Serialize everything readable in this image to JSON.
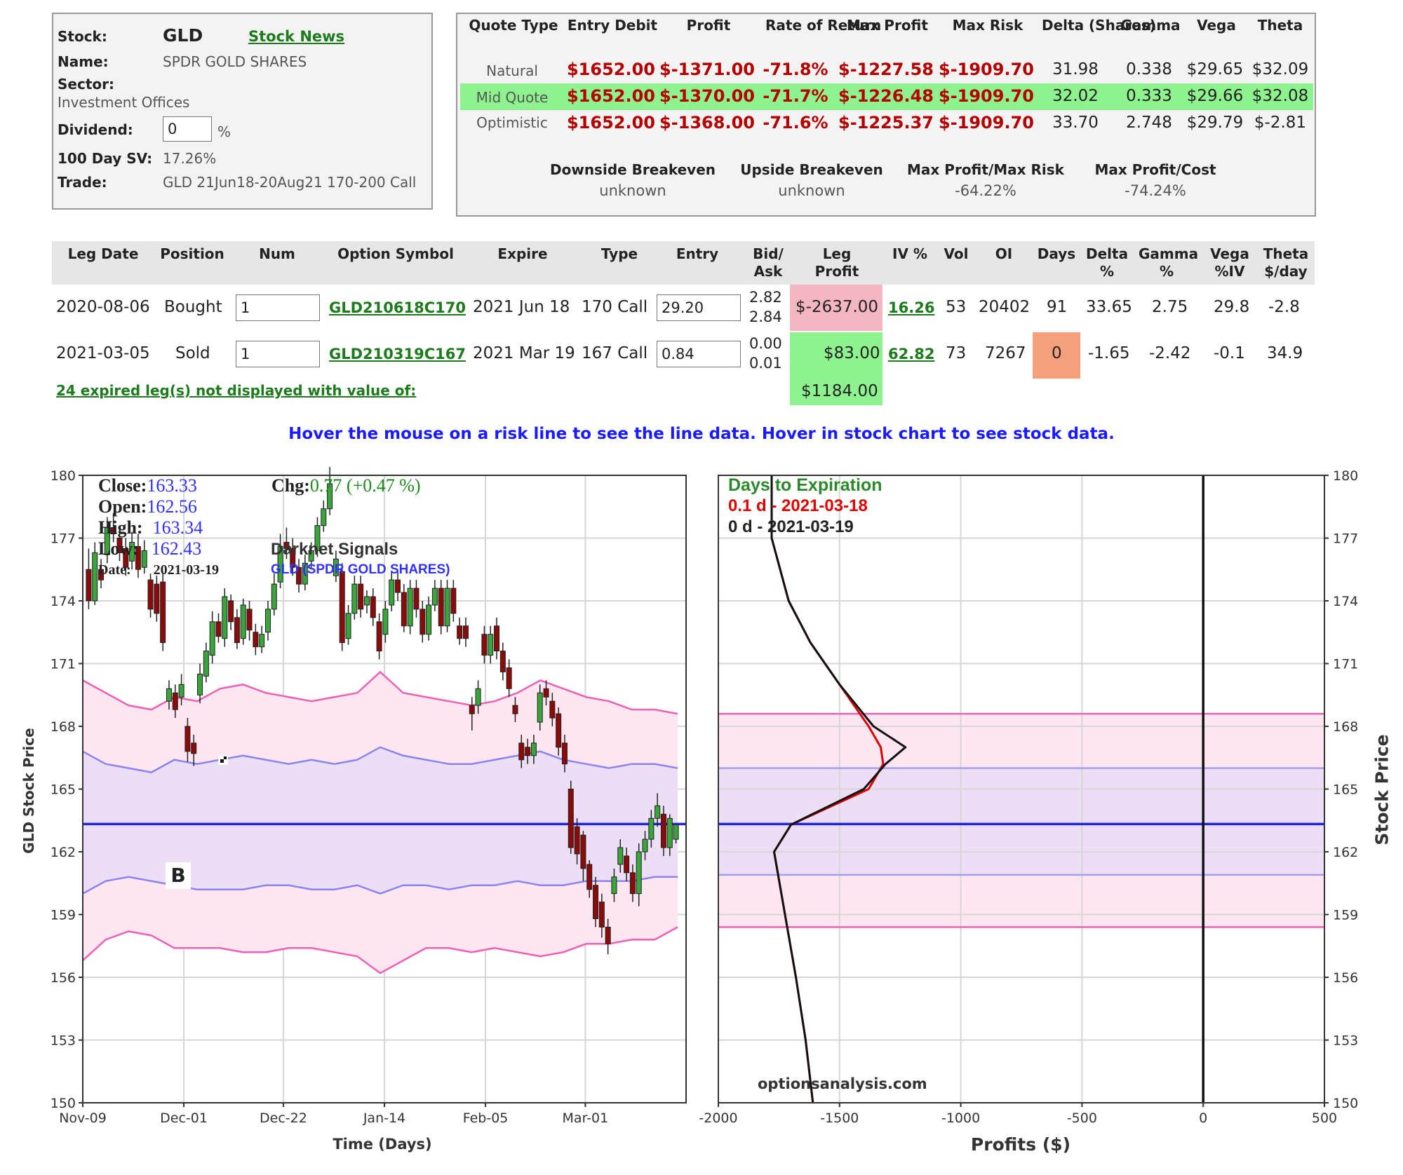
{
  "stock_box": {
    "stock_label": "Stock:",
    "stock_symbol": "GLD",
    "stock_news_link": "Stock News",
    "name_label": "Name:",
    "name_value": "SPDR GOLD SHARES",
    "sector_label": "Sector:",
    "sector_value": "Investment Offices",
    "dividend_label": "Dividend:",
    "dividend_value": "0",
    "dividend_unit": "%",
    "sv_label": "100 Day SV:",
    "sv_value": "17.26%",
    "trade_label": "Trade:",
    "trade_value": "GLD 21Jun18-20Aug21 170-200 Call"
  },
  "quote": {
    "headers": [
      "Quote Type",
      "Entry Debit",
      "Profit",
      "Rate of Return",
      "Max Profit",
      "Max Risk",
      "Delta (Shares)",
      "Gamma",
      "Vega",
      "Theta"
    ],
    "rows": [
      {
        "type": "Natural",
        "entry": "$1652.00",
        "profit": "$-1371.00",
        "ror": "-71.8%",
        "max_profit": "$-1227.58",
        "max_risk": "$-1909.70",
        "delta": "31.98",
        "gamma": "0.338",
        "vega": "$29.65",
        "theta": "$32.09"
      },
      {
        "type": "Mid Quote",
        "entry": "$1652.00",
        "profit": "$-1370.00",
        "ror": "-71.7%",
        "max_profit": "$-1226.48",
        "max_risk": "$-1909.70",
        "delta": "32.02",
        "gamma": "0.333",
        "vega": "$29.66",
        "theta": "$32.08"
      },
      {
        "type": "Optimistic",
        "entry": "$1652.00",
        "profit": "$-1368.00",
        "ror": "-71.6%",
        "max_profit": "$-1225.37",
        "max_risk": "$-1909.70",
        "delta": "33.70",
        "gamma": "2.748",
        "vega": "$29.79",
        "theta": "$-2.81"
      }
    ],
    "highlight_color": "#8ef28e",
    "summary": {
      "downside_label": "Downside Breakeven",
      "downside_value": "unknown",
      "upside_label": "Upside Breakeven",
      "upside_value": "unknown",
      "mpmr_label": "Max Profit/Max Risk",
      "mpmr_value": "-64.22%",
      "mpc_label": "Max Profit/Cost",
      "mpc_value": "-74.24%"
    }
  },
  "legs": {
    "headers": {
      "leg_date": "Leg Date",
      "position": "Position",
      "num": "Num",
      "symbol": "Option Symbol",
      "expire": "Expire",
      "type": "Type",
      "entry": "Entry",
      "bidask": "Bid/ Ask",
      "leg_profit": "Leg Profit",
      "iv": "IV %",
      "vol": "Vol",
      "oi": "OI",
      "days": "Days",
      "delta": "Delta %",
      "gamma": "Gamma %",
      "vega": "Vega %IV",
      "theta": "Theta $/day"
    },
    "rows": [
      {
        "date": "2020-08-06",
        "position": "Bought",
        "num": "1",
        "symbol": "GLD210618C170",
        "expire": "2021 Jun 18",
        "type": "170 Call",
        "entry": "29.20",
        "bid": "2.82",
        "ask": "2.84",
        "leg_profit": "$-2637.00",
        "iv": "16.26",
        "vol": "53",
        "oi": "20402",
        "days": "91",
        "delta": "33.65",
        "gamma": "2.75",
        "vega": "29.8",
        "theta": "-2.8"
      },
      {
        "date": "2021-03-05",
        "position": "Sold",
        "num": "1",
        "symbol": "GLD210319C167",
        "expire": "2021 Mar 19",
        "type": "167 Call",
        "entry": "0.84",
        "bid": "0.00",
        "ask": "0.01",
        "leg_profit": "$83.00",
        "iv": "62.82",
        "vol": "73",
        "oi": "7267",
        "days": "0",
        "delta": "-1.65",
        "gamma": "-2.42",
        "vega": "-0.1",
        "theta": "34.9"
      }
    ],
    "expired_link": "24 expired leg(s) not displayed with value of:",
    "expired_value": "$1184.00",
    "loss_color": "#f4b6c2",
    "gain_color": "#8ef28e",
    "days_alert_color": "#f4a07c"
  },
  "hover_hint": "Hover the mouse on a risk line to see the line data. Hover in stock chart to see stock data.",
  "stock_chart": {
    "ylabel": "GLD Stock Price",
    "xlabel": "Time (Days)",
    "y_ticks": [
      "180",
      "177",
      "174",
      "171",
      "168",
      "165",
      "162",
      "159",
      "156",
      "153",
      "150"
    ],
    "x_ticks": [
      "Nov-09",
      "Dec-01",
      "Dec-22",
      "Jan-14",
      "Feb-05",
      "Mar-01"
    ],
    "info": {
      "close_label": "Close:",
      "close": "163.33",
      "open_label": "Open:",
      "open": "162.56",
      "high_label": "High:",
      "high": "163.34",
      "low_label": "Low:",
      "low": "162.43",
      "date_label": "Date:",
      "date": "2021-03-19",
      "chg_label": "Chg:",
      "chg": "0.77",
      "chg_pct": "(+0.47 %)"
    },
    "signals_title": "Darknet Signals",
    "signals_sub": "GLD (SPDR GOLD SHARES)",
    "marker_b": "B"
  },
  "chart_data": [
    {
      "type": "candlestick",
      "ylim": [
        150,
        180
      ],
      "x_ticks": [
        "Nov-09",
        "Dec-01",
        "Dec-22",
        "Jan-14",
        "Feb-05",
        "Mar-01"
      ],
      "current_price": 163.33,
      "candles": [
        [
          175.5,
          174.0,
          176.5,
          173.6
        ],
        [
          174.0,
          176.3,
          176.8,
          173.8
        ],
        [
          175.5,
          175.0,
          176.0,
          174.6
        ],
        [
          176.2,
          177.5,
          178.0,
          175.8
        ],
        [
          177.5,
          177.2,
          178.2,
          176.8
        ],
        [
          177.0,
          176.3,
          177.6,
          175.9
        ],
        [
          176.5,
          175.6,
          177.0,
          175.2
        ],
        [
          175.9,
          176.8,
          177.3,
          175.5
        ],
        [
          176.6,
          175.5,
          177.2,
          175.1
        ],
        [
          175.6,
          176.4,
          176.9,
          175.3
        ],
        [
          175.0,
          173.6,
          175.3,
          173.2
        ],
        [
          174.8,
          173.4,
          175.2,
          173.0
        ],
        [
          174.9,
          172.0,
          175.4,
          171.6
        ],
        [
          169.2,
          169.8,
          170.2,
          168.8
        ],
        [
          169.6,
          168.8,
          170.0,
          168.4
        ],
        [
          169.4,
          170.0,
          170.5,
          169.0
        ],
        [
          168.0,
          166.8,
          168.4,
          166.3
        ],
        [
          167.2,
          166.7,
          167.6,
          166.1
        ],
        [
          169.5,
          170.5,
          171.0,
          169.1
        ],
        [
          170.4,
          171.6,
          172.0,
          170.1
        ],
        [
          171.4,
          173.0,
          173.5,
          171.0
        ],
        [
          173.0,
          172.3,
          173.4,
          172.0
        ],
        [
          172.2,
          174.2,
          174.6,
          171.8
        ],
        [
          174.0,
          173.0,
          174.3,
          172.6
        ],
        [
          173.2,
          172.0,
          173.6,
          171.7
        ],
        [
          172.2,
          173.8,
          174.1,
          171.9
        ],
        [
          173.6,
          172.6,
          174.0,
          172.1
        ],
        [
          172.5,
          171.8,
          172.9,
          171.4
        ],
        [
          171.8,
          172.4,
          172.8,
          171.5
        ],
        [
          172.5,
          173.6,
          174.0,
          172.1
        ],
        [
          173.6,
          174.8,
          175.3,
          173.3
        ],
        [
          174.9,
          176.6,
          177.2,
          174.6
        ],
        [
          176.8,
          176.5,
          177.5,
          176.0
        ],
        [
          176.5,
          175.6,
          177.0,
          175.2
        ],
        [
          175.6,
          174.8,
          176.0,
          174.4
        ],
        [
          174.8,
          175.8,
          176.2,
          174.5
        ],
        [
          175.9,
          176.4,
          176.8,
          175.5
        ],
        [
          176.4,
          177.6,
          178.0,
          176.1
        ],
        [
          177.6,
          178.4,
          178.8,
          177.3
        ],
        [
          178.4,
          179.6,
          180.4,
          178.1
        ],
        [
          175.2,
          176.0,
          176.4,
          174.9
        ],
        [
          175.4,
          172.0,
          175.8,
          171.6
        ],
        [
          172.2,
          173.4,
          173.8,
          171.9
        ],
        [
          173.4,
          174.8,
          175.2,
          173.1
        ],
        [
          174.8,
          173.6,
          175.2,
          173.2
        ],
        [
          173.8,
          174.2,
          174.5,
          173.4
        ],
        [
          174.2,
          173.2,
          174.6,
          172.8
        ],
        [
          173.0,
          171.6,
          173.4,
          171.2
        ],
        [
          172.4,
          173.6,
          174.0,
          172.0
        ],
        [
          173.8,
          175.0,
          175.4,
          173.5
        ],
        [
          175.0,
          174.4,
          175.4,
          174.0
        ],
        [
          174.4,
          172.8,
          174.8,
          172.5
        ],
        [
          172.8,
          174.6,
          175.0,
          172.4
        ],
        [
          174.6,
          173.6,
          175.0,
          173.2
        ],
        [
          173.6,
          172.4,
          174.0,
          172.0
        ],
        [
          172.4,
          173.8,
          174.2,
          172.1
        ],
        [
          173.8,
          174.6,
          175.0,
          173.5
        ],
        [
          174.6,
          172.8,
          175.0,
          172.4
        ],
        [
          172.8,
          174.6,
          175.0,
          172.5
        ],
        [
          174.6,
          173.4,
          175.0,
          173.0
        ],
        [
          172.8,
          172.2,
          173.2,
          171.9
        ],
        [
          172.8,
          172.2,
          173.2,
          171.8
        ],
        [
          169.0,
          168.6,
          169.4,
          167.8
        ],
        [
          169.0,
          169.8,
          170.2,
          168.6
        ],
        [
          172.4,
          171.4,
          172.8,
          171.0
        ],
        [
          171.4,
          172.4,
          172.8,
          171.0
        ],
        [
          172.8,
          171.6,
          173.2,
          171.2
        ],
        [
          171.6,
          170.6,
          172.0,
          170.2
        ],
        [
          170.8,
          169.8,
          171.2,
          169.4
        ],
        [
          169.0,
          168.6,
          169.4,
          168.2
        ],
        [
          167.2,
          166.4,
          167.6,
          166.0
        ],
        [
          167.0,
          166.6,
          167.4,
          166.2
        ],
        [
          166.6,
          167.2,
          167.6,
          166.2
        ],
        [
          168.2,
          169.6,
          170.0,
          167.8
        ],
        [
          169.8,
          169.4,
          170.2,
          169.0
        ],
        [
          169.2,
          168.4,
          169.6,
          168.0
        ],
        [
          168.6,
          167.0,
          168.9,
          166.6
        ],
        [
          167.2,
          166.2,
          167.6,
          165.8
        ],
        [
          165.0,
          162.2,
          165.4,
          161.9
        ],
        [
          163.2,
          161.9,
          163.6,
          161.4
        ],
        [
          162.8,
          161.2,
          163.0,
          160.6
        ],
        [
          161.4,
          160.2,
          161.6,
          159.8
        ],
        [
          160.4,
          158.8,
          160.8,
          158.4
        ],
        [
          159.6,
          158.4,
          160.0,
          157.9
        ],
        [
          158.4,
          157.6,
          158.8,
          157.1
        ],
        [
          160.0,
          160.8,
          161.2,
          159.6
        ],
        [
          161.4,
          162.2,
          162.6,
          161.0
        ],
        [
          161.8,
          161.0,
          162.2,
          160.6
        ],
        [
          161.0,
          160.0,
          161.4,
          159.6
        ],
        [
          160.0,
          162.0,
          162.4,
          159.4
        ],
        [
          162.0,
          162.6,
          163.0,
          161.6
        ],
        [
          162.6,
          163.6,
          164.0,
          162.2
        ],
        [
          163.6,
          164.2,
          164.8,
          163.2
        ],
        [
          163.8,
          162.2,
          164.2,
          161.8
        ],
        [
          162.2,
          163.6,
          163.8,
          161.8
        ],
        [
          162.6,
          163.3,
          163.3,
          162.4
        ]
      ],
      "bands": {
        "upper_outer": [
          170.2,
          169.6,
          169.0,
          168.8,
          169.4,
          169.2,
          169.8,
          170.0,
          169.6,
          169.4,
          169.2,
          169.4,
          169.6,
          170.6,
          169.6,
          169.4,
          169.2,
          169.0,
          169.2,
          169.6,
          170.2,
          169.8,
          169.4,
          169.2,
          168.8,
          168.8,
          168.6
        ],
        "upper_inner": [
          166.8,
          166.2,
          166.0,
          165.8,
          166.4,
          166.2,
          166.4,
          166.6,
          166.4,
          166.2,
          166.4,
          166.2,
          166.4,
          167.0,
          166.6,
          166.4,
          166.2,
          166.2,
          166.4,
          166.6,
          166.8,
          166.4,
          166.2,
          166.0,
          166.2,
          166.2,
          166.0
        ],
        "lower_inner": [
          160.0,
          160.6,
          160.8,
          160.6,
          160.4,
          160.2,
          160.2,
          160.2,
          160.4,
          160.4,
          160.2,
          160.2,
          160.4,
          160.0,
          160.4,
          160.4,
          160.2,
          160.4,
          160.4,
          160.6,
          160.4,
          160.4,
          160.6,
          160.6,
          160.6,
          160.8,
          160.8
        ],
        "lower_outer": [
          156.8,
          157.8,
          158.2,
          158.0,
          157.4,
          157.4,
          157.4,
          157.2,
          157.2,
          157.4,
          157.4,
          157.2,
          157.0,
          156.2,
          156.8,
          157.4,
          157.4,
          157.2,
          157.4,
          157.2,
          157.0,
          157.2,
          157.6,
          157.6,
          157.8,
          157.8,
          158.4
        ]
      }
    },
    {
      "type": "line",
      "xlabel": "Profits ($)",
      "ylabel": "Stock Price",
      "xlim": [
        -2000,
        500
      ],
      "ylim": [
        150,
        180
      ],
      "x_ticks": [
        "-2000",
        "-1500",
        "-1000",
        "-500",
        "0",
        "500"
      ],
      "y_ticks": [
        "180",
        "177",
        "174",
        "171",
        "168",
        "165",
        "162",
        "159",
        "156",
        "153",
        "150"
      ],
      "legend_title": "Days to Expiration",
      "series": [
        {
          "name": "0.1 d - 2021-03-18",
          "color": "#e00000",
          "points": [
            [
              -1610,
              150
            ],
            [
              -1640,
              153
            ],
            [
              -1680,
              156
            ],
            [
              -1725,
              159
            ],
            [
              -1770,
              162
            ],
            [
              -1700,
              163.3
            ],
            [
              -1380,
              165
            ],
            [
              -1320,
              166.2
            ],
            [
              -1330,
              167
            ],
            [
              -1380,
              168
            ],
            [
              -1500,
              170
            ],
            [
              -1620,
              172
            ],
            [
              -1710,
              174
            ],
            [
              -1780,
              177
            ],
            [
              -1780,
              180
            ]
          ]
        },
        {
          "name": "0 d - 2021-03-19",
          "color": "#111111",
          "points": [
            [
              -1610,
              150
            ],
            [
              -1640,
              153
            ],
            [
              -1680,
              156
            ],
            [
              -1725,
              159
            ],
            [
              -1770,
              162
            ],
            [
              -1700,
              163.3
            ],
            [
              -1400,
              165
            ],
            [
              -1310,
              166.2
            ],
            [
              -1228,
              167
            ],
            [
              -1360,
              168
            ],
            [
              -1500,
              170
            ],
            [
              -1620,
              172
            ],
            [
              -1710,
              174
            ],
            [
              -1780,
              177
            ],
            [
              -1780,
              180
            ]
          ]
        }
      ],
      "band_levels": {
        "upper_outer": 168.6,
        "upper_inner": 166.0,
        "current": 163.33,
        "lower_inner": 160.9,
        "lower_outer": 158.4
      },
      "watermark": "optionsanalysis.com"
    }
  ]
}
